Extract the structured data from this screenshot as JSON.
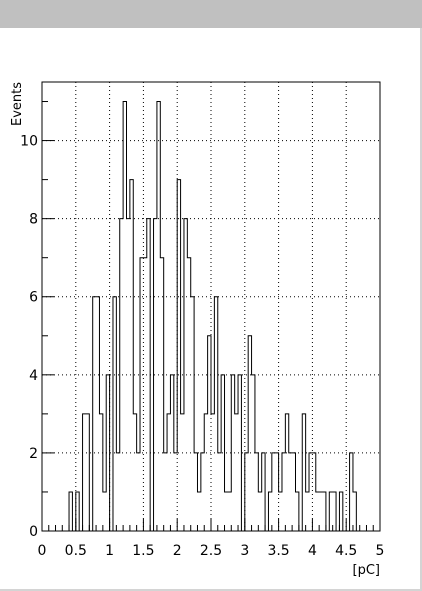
{
  "chart_data": {
    "type": "histogram",
    "title": "",
    "xlabel": "[pC]",
    "ylabel": "Events",
    "xlim": [
      0,
      5
    ],
    "ylim": [
      0,
      11.5
    ],
    "grid": true,
    "bin_width": 0.05,
    "bins_start": 0.4,
    "values": [
      1,
      0,
      1,
      0,
      3,
      3,
      0,
      6,
      6,
      3,
      1,
      4,
      0,
      6,
      2,
      8,
      11,
      8,
      9,
      3,
      2,
      7,
      7,
      8,
      0,
      8,
      11,
      7,
      2,
      3,
      4,
      2,
      9,
      3,
      8,
      7,
      6,
      2,
      1,
      2,
      3,
      5,
      3,
      6,
      2,
      4,
      1,
      1,
      4,
      3,
      4,
      0,
      2,
      5,
      4,
      2,
      1,
      2,
      0,
      1,
      2,
      2,
      1,
      2,
      3,
      2,
      2,
      1,
      0,
      3,
      1,
      2,
      2,
      1,
      1,
      1,
      0,
      1,
      1,
      0,
      1,
      0,
      0,
      2,
      1
    ],
    "x_ticks": [
      "0",
      "0.5",
      "1",
      "1.5",
      "2",
      "2.5",
      "3",
      "3.5",
      "4",
      "4.5",
      "5"
    ],
    "y_ticks": [
      "0",
      "2",
      "4",
      "6",
      "8",
      "10"
    ],
    "colors": {
      "line": "#000000",
      "grid": "#000000",
      "background": "#ffffff",
      "title_bar": "#c0c0c0"
    }
  }
}
